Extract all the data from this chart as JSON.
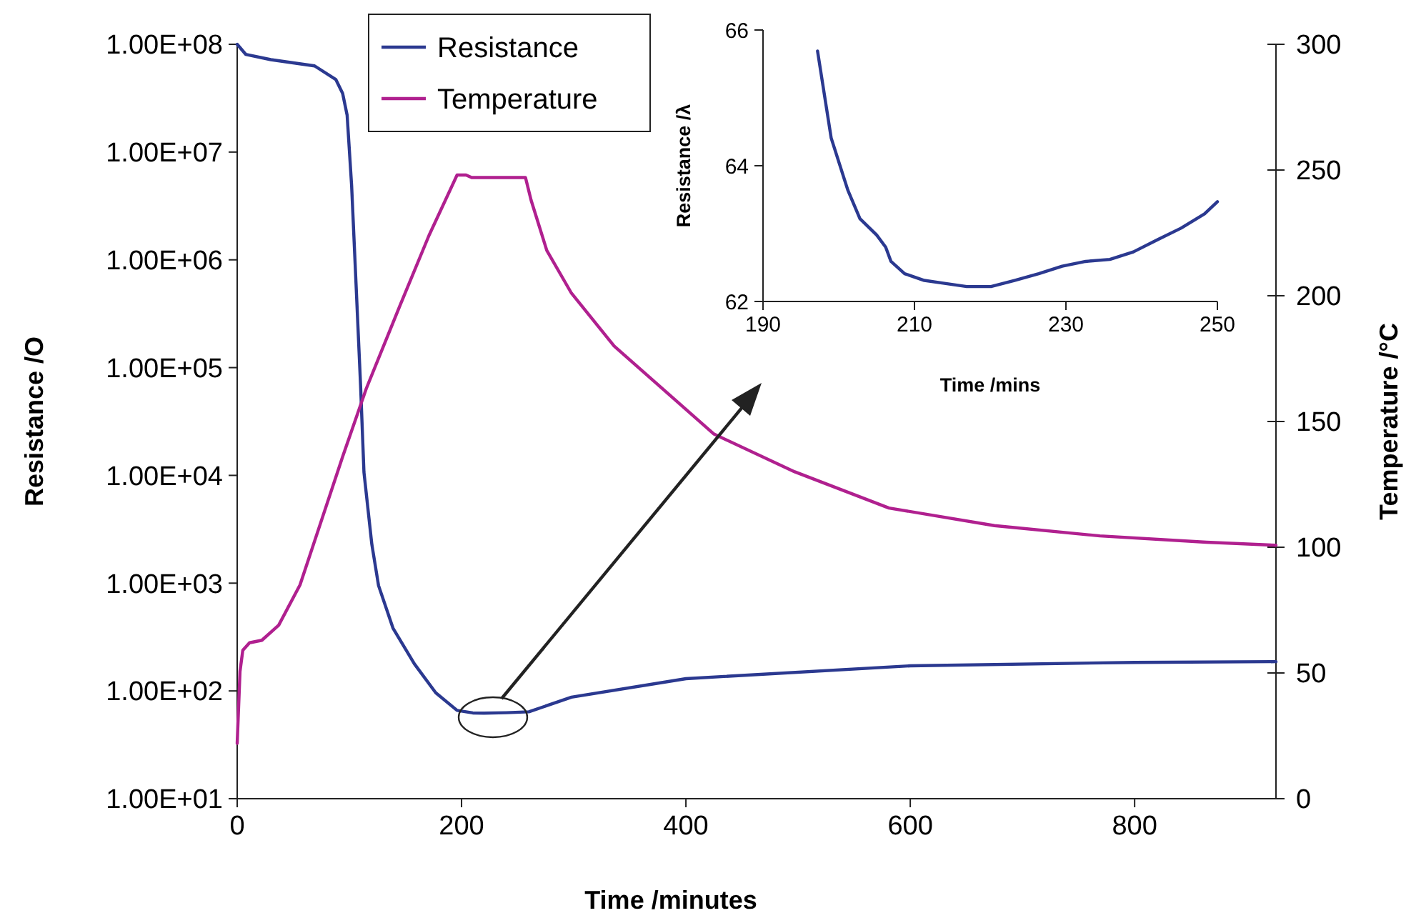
{
  "chart_data": [
    {
      "type": "line",
      "xlabel": "Time /minutes",
      "ylabel": "Resistance /O",
      "y2label": "Temperature /°C",
      "log": "y",
      "legend": "top",
      "grid": false,
      "xlim": [
        0,
        926
      ],
      "xticks": [
        0,
        200,
        400,
        600,
        800
      ],
      "ylim": [
        10,
        100000000
      ],
      "yticks": [
        {
          "value": 10,
          "label": "1.00E+01"
        },
        {
          "value": 100,
          "label": "1.00E+02"
        },
        {
          "value": 1000,
          "label": "1.00E+03"
        },
        {
          "value": 10000,
          "label": "1.00E+04"
        },
        {
          "value": 100000,
          "label": "1.00E+05"
        },
        {
          "value": 1000000,
          "label": "1.00E+06"
        },
        {
          "value": 10000000,
          "label": "1.00E+07"
        },
        {
          "value": 100000000,
          "label": "1.00E+08"
        }
      ],
      "y2lim": [
        0,
        300
      ],
      "y2ticks": [
        0,
        50,
        100,
        150,
        200,
        250,
        300
      ],
      "series": [
        {
          "name": "Resistance",
          "color": "#2b3990",
          "x": [
            0,
            7.6,
            30,
            69,
            88,
            94,
            98,
            102,
            106,
            110,
            113,
            120,
            126,
            139,
            158,
            177,
            196,
            210,
            220,
            240,
            260,
            298,
            400,
            600,
            800,
            926
          ],
          "values": [
            100000000,
            80700000,
            72000000,
            63000000,
            47000000,
            35000000,
            22000000,
            4900000,
            580000,
            68000,
            10700,
            2300,
            950,
            380,
            178,
            96,
            66,
            62.5,
            62.2,
            62.8,
            64,
            87.5,
            130,
            171,
            184,
            187
          ]
        },
        {
          "name": "Temperature",
          "color": "#b0208f",
          "axis": "y2",
          "x": [
            0,
            2.5,
            5,
            11,
            22,
            37,
            56,
            94,
            115,
            145,
            171,
            196,
            204,
            209,
            257,
            262,
            276,
            298,
            336,
            425,
            497,
            581,
            675,
            769,
            864,
            926
          ],
          "values": [
            22,
            50.6,
            59,
            62,
            63,
            69,
            85,
            136,
            163,
            196,
            224,
            248,
            248,
            247,
            247,
            238,
            218,
            201,
            180,
            145,
            130,
            115.6,
            108.6,
            104.5,
            102,
            100.8
          ]
        }
      ]
    },
    {
      "type": "line",
      "xlabel": "Time /mins",
      "ylabel": "Resistance /λ",
      "grid": false,
      "xlim": [
        190,
        250
      ],
      "xticks": [
        190,
        210,
        230,
        250
      ],
      "ylim": [
        62,
        66
      ],
      "yticks": [
        62,
        64,
        66
      ],
      "series": [
        {
          "color": "#2b3990",
          "x": [
            197.2,
            199.0,
            201.2,
            202.8,
            205.0,
            206.2,
            206.9,
            208.7,
            211.3,
            213.8,
            216.9,
            220.1,
            223.2,
            226.4,
            229.5,
            232.6,
            235.8,
            238.9,
            242.1,
            245.2,
            248.3,
            250
          ],
          "values": [
            65.69,
            64.41,
            63.64,
            63.22,
            62.98,
            62.8,
            62.59,
            62.41,
            62.31,
            62.27,
            62.22,
            62.22,
            62.31,
            62.41,
            62.52,
            62.59,
            62.62,
            62.73,
            62.91,
            63.08,
            63.29,
            63.47
          ]
        }
      ]
    }
  ]
}
